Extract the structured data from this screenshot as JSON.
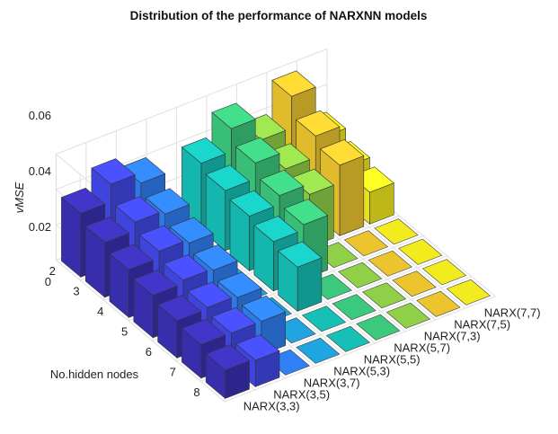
{
  "chart_data": {
    "type": "bar3d",
    "title": "Distribution of the performance of NARXNN models",
    "zlabel": "vMSE",
    "ylabel": "No.hidden nodes",
    "xlabel": "",
    "x_categories": [
      "NARX(3,3)",
      "NARX(3,5)",
      "NARX(3,7)",
      "NARX(5,3)",
      "NARX(5,5)",
      "NARX(5,7)",
      "NARX(7,3)",
      "NARX(7,5)",
      "NARX(7,7)"
    ],
    "y_categories": [
      "2",
      "3",
      "4",
      "5",
      "6",
      "7",
      "8"
    ],
    "zlim": [
      0,
      0.06
    ],
    "zticks": [
      "0",
      "0.02",
      "0.04",
      "0.06"
    ],
    "grid": true,
    "values": [
      [
        0.036,
        0.046,
        0.04,
        0.0,
        0.038,
        0.051,
        0.038,
        0.056,
        0.026
      ],
      [
        0.031,
        0.036,
        0.034,
        0.0,
        0.034,
        0.043,
        0.033,
        0.045,
        0.021
      ],
      [
        0.027,
        0.031,
        0.029,
        0.0,
        0.031,
        0.036,
        0.03,
        0.04,
        0.018
      ],
      [
        0.024,
        0.026,
        0.025,
        0.0,
        0.028,
        0.031,
        0.0,
        0.0,
        0.0
      ],
      [
        0.021,
        0.022,
        0.021,
        0.0,
        0.025,
        0.0,
        0.0,
        0.0,
        0.0
      ],
      [
        0.019,
        0.019,
        0.019,
        0.0,
        0.0,
        0.0,
        0.0,
        0.0,
        0.0
      ],
      [
        0.016,
        0.015,
        0.0,
        0.0,
        0.0,
        0.0,
        0.0,
        0.0,
        0.0
      ]
    ],
    "colors": [
      "#3b2fb4",
      "#4249e8",
      "#2f7ff5",
      "#1fa5e0",
      "#16c0b6",
      "#3cc87d",
      "#8fd048",
      "#ecc52e",
      "#f2ec1f"
    ]
  }
}
